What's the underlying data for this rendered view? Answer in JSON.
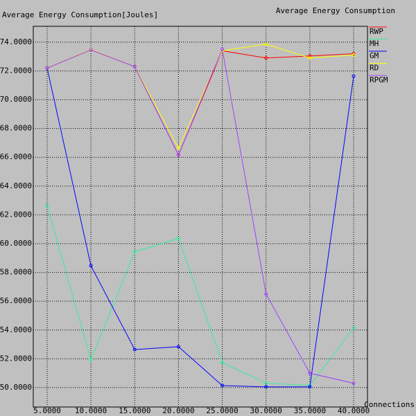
{
  "chart_data": {
    "type": "line",
    "title": "Average Energy Consumption",
    "ylabel": "Average Energy Consumption[Joules]",
    "xlabel": "Connections",
    "x": [
      5,
      10,
      15,
      20,
      25,
      30,
      35,
      40
    ],
    "xlim": [
      3.42,
      41.58
    ],
    "ylim": [
      48.65,
      75.1
    ],
    "xticks": [
      {
        "value": 5,
        "label": "5.0000"
      },
      {
        "value": 10,
        "label": "10.0000"
      },
      {
        "value": 15,
        "label": "15.0000"
      },
      {
        "value": 20,
        "label": "20.0000"
      },
      {
        "value": 25,
        "label": "25.0000"
      },
      {
        "value": 30,
        "label": "30.0000"
      },
      {
        "value": 35,
        "label": "35.0000"
      },
      {
        "value": 40,
        "label": "40.0000"
      }
    ],
    "yticks": [
      {
        "value": 50,
        "label": "50.0000"
      },
      {
        "value": 52,
        "label": "52.0000"
      },
      {
        "value": 54,
        "label": "54.0000"
      },
      {
        "value": 56,
        "label": "56.0000"
      },
      {
        "value": 58,
        "label": "58.0000"
      },
      {
        "value": 60,
        "label": "60.0000"
      },
      {
        "value": 62,
        "label": "62.0000"
      },
      {
        "value": 64,
        "label": "64.0000"
      },
      {
        "value": 66,
        "label": "66.0000"
      },
      {
        "value": 68,
        "label": "68.0000"
      },
      {
        "value": 70,
        "label": "70.0000"
      },
      {
        "value": 72,
        "label": "72.0000"
      },
      {
        "value": 74,
        "label": "74.0000"
      }
    ],
    "grid": true,
    "legend": "right",
    "series": [
      {
        "name": "RWP",
        "color": "#ff0000",
        "values": [
          72.2,
          73.47,
          72.3,
          66.16,
          73.4,
          72.9,
          73.04,
          73.2
        ]
      },
      {
        "name": "MH",
        "color": "#33ee99",
        "values": [
          62.65,
          51.93,
          59.43,
          60.35,
          51.74,
          50.3,
          50.15,
          54.14
        ]
      },
      {
        "name": "GM",
        "color": "#0000ff",
        "values": [
          72.2,
          58.47,
          52.64,
          52.84,
          50.14,
          50.05,
          50.05,
          71.64
        ]
      },
      {
        "name": "RD",
        "color": "#ffff00",
        "values": [
          72.2,
          73.5,
          72.3,
          66.64,
          73.4,
          73.86,
          72.9,
          73.1
        ]
      },
      {
        "name": "RPGM",
        "color": "#a040ff",
        "values": [
          72.2,
          73.47,
          72.3,
          66.16,
          73.52,
          56.5,
          51.0,
          50.3
        ]
      }
    ]
  }
}
